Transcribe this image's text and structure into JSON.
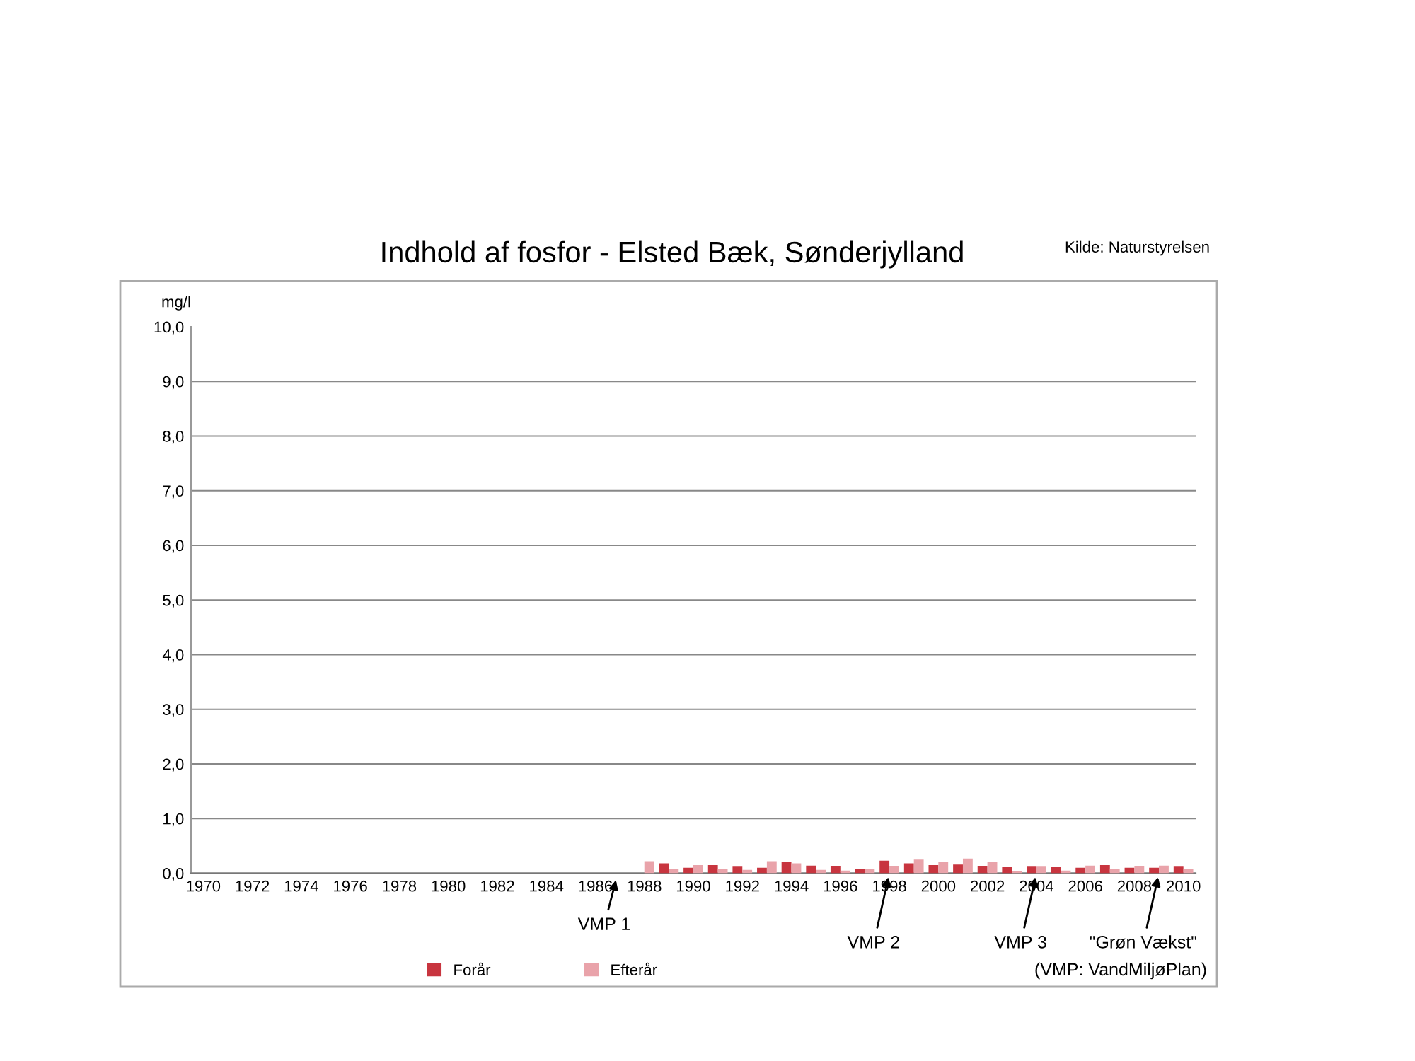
{
  "chart_data": {
    "type": "bar",
    "title": "Indhold af fosfor - Elsted Bæk, Sønderjylland",
    "ylabel": "mg/l",
    "x": [
      1988,
      1989,
      1990,
      1991,
      1992,
      1993,
      1994,
      1995,
      1996,
      1997,
      1998,
      1999,
      2000,
      2001,
      2002,
      2003,
      2004,
      2005,
      2006,
      2007,
      2008,
      2009,
      2010
    ],
    "series": [
      {
        "name": "Forår",
        "color": "#c8353f",
        "values": [
          null,
          0.18,
          0.1,
          0.15,
          0.12,
          0.1,
          0.2,
          0.14,
          0.13,
          0.08,
          0.23,
          0.18,
          0.15,
          0.16,
          0.13,
          0.11,
          0.12,
          0.11,
          0.1,
          0.15,
          0.1,
          0.1,
          0.12
        ]
      },
      {
        "name": "Efterår",
        "color": "#e9a3aa",
        "values": [
          0.22,
          0.08,
          0.15,
          0.08,
          0.06,
          0.22,
          0.18,
          0.06,
          0.05,
          0.07,
          0.13,
          0.25,
          0.2,
          0.27,
          0.2,
          0.04,
          0.12,
          0.05,
          0.14,
          0.08,
          0.13,
          0.14,
          0.07
        ]
      }
    ],
    "xlim": [
      1969.5,
      2010.5
    ],
    "xticks": [
      1970,
      1972,
      1974,
      1976,
      1978,
      1980,
      1982,
      1984,
      1986,
      1988,
      1990,
      1992,
      1994,
      1996,
      1998,
      2000,
      2002,
      2004,
      2006,
      2008,
      2010
    ],
    "ylim": [
      0,
      10
    ],
    "yticks": [
      {
        "value": 0,
        "label": "0,0"
      },
      {
        "value": 1,
        "label": "1,0"
      },
      {
        "value": 2,
        "label": "2,0"
      },
      {
        "value": 3,
        "label": "3,0"
      },
      {
        "value": 4,
        "label": "4,0"
      },
      {
        "value": 5,
        "label": "5,0"
      },
      {
        "value": 6,
        "label": "6,0"
      },
      {
        "value": 7,
        "label": "7,0"
      },
      {
        "value": 8,
        "label": "8,0"
      },
      {
        "value": 9,
        "label": "9,0"
      },
      {
        "value": 10,
        "label": "10,0"
      }
    ],
    "grid": "y",
    "legend": "bottom",
    "annotations": [
      "VMP 1",
      {
        "text": "VMP 2",
        "x": 1998,
        "y": 0
      },
      {
        "text": "VMP 3",
        "x": 2004,
        "y": 0
      },
      {
        "text": "\"Grøn Vækst\"",
        "x": 2009,
        "y": 0
      },
      "Kilde: Naturstyrelsen",
      "(VMP: VandMiljøPlan)"
    ]
  }
}
